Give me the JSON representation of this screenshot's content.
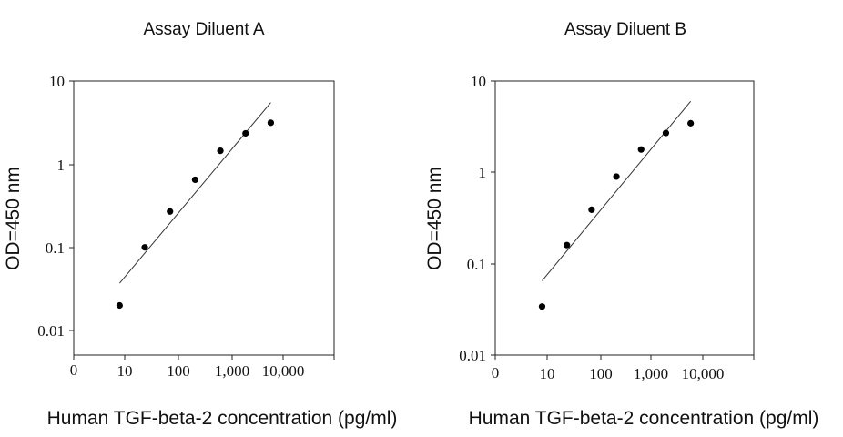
{
  "chart_data": [
    {
      "type": "scatter",
      "title": "Assay Diluent A",
      "xlabel": "Human TGF-beta-2 concentration (pg/ml)",
      "ylabel": "OD=450 nm",
      "x_scale": "log",
      "y_scale": "log",
      "x_tick_labels": [
        "0",
        "10",
        "100",
        "1,000",
        "10,000"
      ],
      "y_tick_labels": [
        "10",
        "1",
        "0.1",
        "0.01"
      ],
      "ylim": [
        0.01,
        10
      ],
      "series": [
        {
          "x": [
            8,
            24,
            72,
            216,
            648,
            1944,
            5832
          ],
          "y": [
            0.02,
            0.1,
            0.27,
            0.65,
            1.45,
            2.35,
            3.15
          ]
        }
      ],
      "fit_line": {
        "x": [
          8,
          5832
        ],
        "y": [
          0.037,
          5.5
        ]
      }
    },
    {
      "type": "scatter",
      "title": "Assay Diluent B",
      "xlabel": "Human TGF-beta-2 concentration (pg/ml)",
      "ylabel": "OD=450 nm",
      "x_scale": "log",
      "y_scale": "log",
      "x_tick_labels": [
        "0",
        "10",
        "100",
        "1,000",
        "10,000"
      ],
      "y_tick_labels": [
        "10",
        "1",
        "0.1",
        "0.01"
      ],
      "ylim": [
        0.01,
        10
      ],
      "series": [
        {
          "x": [
            8,
            24,
            72,
            216,
            648,
            1944,
            5832
          ],
          "y": [
            0.034,
            0.16,
            0.39,
            0.9,
            1.78,
            2.7,
            3.45
          ]
        }
      ],
      "fit_line": {
        "x": [
          8,
          5832
        ],
        "y": [
          0.065,
          6.0
        ]
      }
    }
  ]
}
